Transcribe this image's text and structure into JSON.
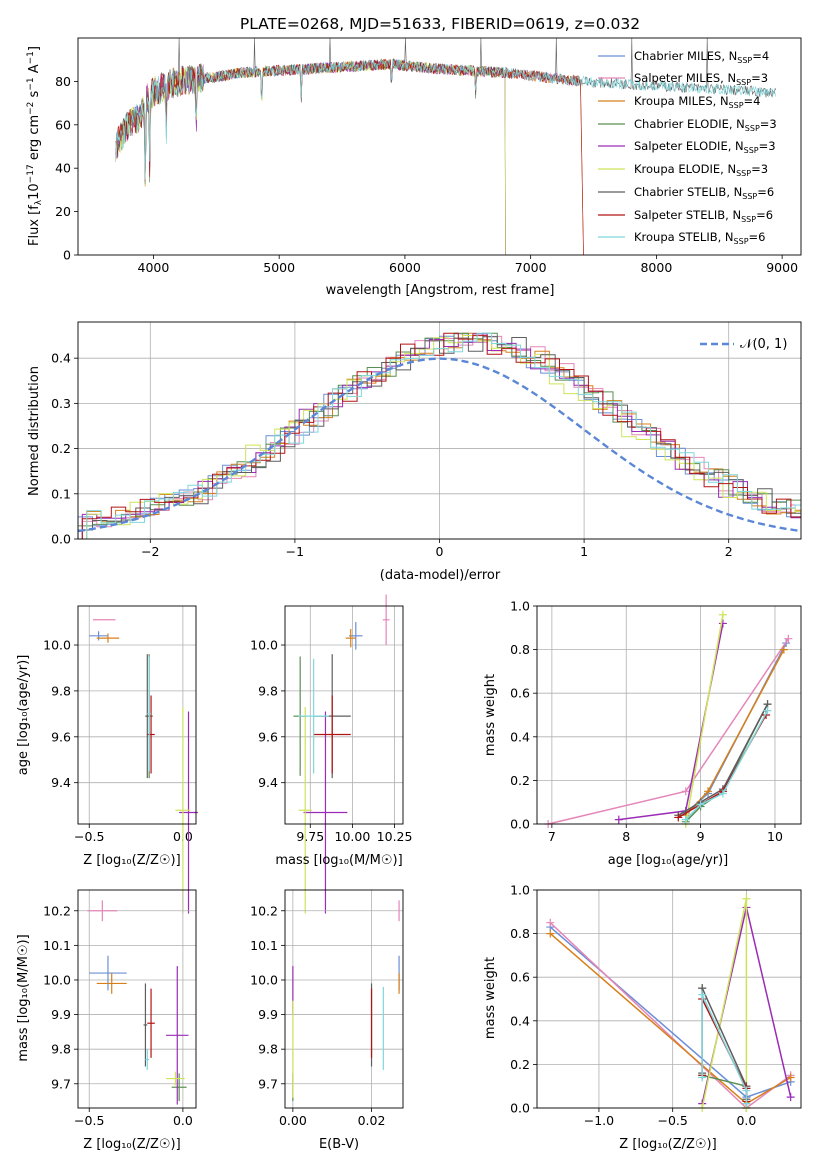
{
  "figure_title": "PLATE=0268, MJD=51633, FIBERID=0619, z=0.032",
  "colors": [
    "#6b8fd6",
    "#e586b8",
    "#d7801b",
    "#5a8f52",
    "#9b2cb7",
    "#cfe35a",
    "#5e5e5e",
    "#b21414",
    "#7fd8de"
  ],
  "panel_labels": {
    "spectrum": {
      "xlabel": "wavelength [Angstrom, rest frame]",
      "ylabel_main": "Flux [f",
      "ylabel_sub": "λ",
      "ylabel_mid": "10",
      "ylabel_sup": "−17",
      "ylabel_tail": " erg cm",
      "ylabel_sup2": "−2",
      "ylabel_tail2": " s",
      "ylabel_sup3": "−1",
      "ylabel_tail3": " A",
      "ylabel_sup4": "−1",
      "ylabel_end": "]"
    },
    "residual": {
      "xlabel": "(data-model)/error",
      "ylabel": "Normed distribution"
    },
    "z_age": {
      "xlabel": "Z [log₁₀(Z/Z☉)]",
      "ylabel": "age  [log₁₀(age/yr)]"
    },
    "mass_age": {
      "xlabel": "mass [log₁₀(M/M☉)]"
    },
    "age_weight": {
      "xlabel": "age  [log₁₀(age/yr)]",
      "ylabel": "mass weight"
    },
    "z_mass": {
      "xlabel": "Z [log₁₀(Z/Z☉)]",
      "ylabel": "mass [log₁₀(M/M☉)]"
    },
    "ebv_mass": {
      "xlabel": "E(B-V)"
    },
    "z_weight": {
      "xlabel": "Z [log₁₀(Z/Z☉)]",
      "ylabel": "mass weight"
    }
  },
  "legend": {
    "entries": [
      {
        "main": "Chabrier MILES, N",
        "sub": "SSP",
        "tail": "=4"
      },
      {
        "main": "Salpeter MILES, N",
        "sub": "SSP",
        "tail": "=3"
      },
      {
        "main": "Kroupa MILES, N",
        "sub": "SSP",
        "tail": "=4"
      },
      {
        "main": "Chabrier ELODIE, N",
        "sub": "SSP",
        "tail": "=3"
      },
      {
        "main": "Salpeter ELODIE, N",
        "sub": "SSP",
        "tail": "=3"
      },
      {
        "main": "Kroupa ELODIE, N",
        "sub": "SSP",
        "tail": "=3"
      },
      {
        "main": "Chabrier STELIB, N",
        "sub": "SSP",
        "tail": "=6"
      },
      {
        "main": "Salpeter STELIB, N",
        "sub": "SSP",
        "tail": "=6"
      },
      {
        "main": "Kroupa STELIB, N",
        "sub": "SSP",
        "tail": "=6"
      }
    ],
    "gaussian_label": "𝒩(0, 1)"
  },
  "chart_data": [
    {
      "id": "spectrum",
      "type": "line",
      "xlim": [
        3400,
        9150
      ],
      "ylim": [
        0,
        100
      ],
      "xticks": [
        4000,
        5000,
        6000,
        7000,
        8000,
        9000
      ],
      "yticks": [
        0,
        20,
        40,
        60,
        80
      ],
      "legend_position": "top-right",
      "continuum_x": [
        3700,
        3750,
        3800,
        3850,
        3900,
        3950,
        4000,
        4100,
        4200,
        4300,
        4500,
        4700,
        5000,
        5300,
        5600,
        5900,
        6200,
        6500,
        6800,
        7100,
        7400,
        7700,
        8000,
        8300,
        8600,
        8900
      ],
      "continuum_y": [
        50,
        55,
        60,
        62,
        64,
        72,
        75,
        78,
        80,
        81,
        82,
        84,
        85,
        86,
        87,
        88,
        86,
        85,
        84,
        82,
        80,
        79,
        78,
        77,
        76,
        75
      ],
      "series_ranges": [
        {
          "start": 3700,
          "end": 7400,
          "drop_at": null
        },
        {
          "start": 3700,
          "end": 7400,
          "drop_at": null
        },
        {
          "start": 3700,
          "end": 7400,
          "drop_at": 7420
        },
        {
          "start": 3700,
          "end": 6800,
          "drop_at": 6800
        },
        {
          "start": 3700,
          "end": 6800,
          "drop_at": 6800
        },
        {
          "start": 3700,
          "end": 6800,
          "drop_at": 6800
        },
        {
          "start": 3700,
          "end": 8950,
          "drop_at": null
        },
        {
          "start": 3700,
          "end": 7400,
          "drop_at": 7420
        },
        {
          "start": 3700,
          "end": 8950,
          "drop_at": null
        }
      ]
    },
    {
      "id": "residual",
      "type": "histogram",
      "xlim": [
        -2.5,
        2.5
      ],
      "ylim": [
        0,
        0.48
      ],
      "xticks": [
        -2,
        -1,
        0,
        1,
        2
      ],
      "yticks": [
        0.0,
        0.1,
        0.2,
        0.3,
        0.4
      ],
      "bin_edges_start": -2.5,
      "bin_width": 0.1,
      "gaussian": {
        "mean": 0,
        "sigma": 1,
        "label": "𝒩(0, 1)"
      },
      "grid": true,
      "legend_position": "top-right"
    },
    {
      "id": "z_age",
      "type": "scatter",
      "xlim": [
        -0.56,
        0.07
      ],
      "ylim": [
        9.22,
        10.17
      ],
      "xticks": [
        -0.5,
        0.0
      ],
      "yticks": [
        9.4,
        9.6,
        9.8,
        10.0
      ],
      "points": [
        {
          "x": -0.45,
          "y": 10.04,
          "xerr": 0.05,
          "yerr": 0.02
        },
        {
          "x": -0.42,
          "y": 10.11,
          "xerr": 0.06,
          "yerr": 0.0
        },
        {
          "x": -0.4,
          "y": 10.03,
          "xerr": 0.06,
          "yerr": 0.02
        },
        {
          "x": -0.18,
          "y": 9.69,
          "xerr": 0.02,
          "yerr": 0.27
        },
        {
          "x": 0.03,
          "y": 9.27,
          "xerr": 0.05,
          "yerr": 0.44
        },
        {
          "x": 0.0,
          "y": 9.28,
          "xerr": 0.04,
          "yerr": 0.45
        },
        {
          "x": -0.19,
          "y": 9.69,
          "xerr": 0.01,
          "yerr": 0.27
        },
        {
          "x": -0.17,
          "y": 9.61,
          "xerr": 0.02,
          "yerr": 0.17
        },
        {
          "x": -0.18,
          "y": 9.7,
          "xerr": 0.01,
          "yerr": 0.25
        }
      ]
    },
    {
      "id": "mass_age",
      "type": "scatter",
      "xlim": [
        9.6,
        10.3
      ],
      "ylim": [
        9.22,
        10.17
      ],
      "xticks": [
        9.75,
        10.0,
        10.25
      ],
      "yticks": [
        9.4,
        9.6,
        9.8,
        10.0
      ],
      "points": [
        {
          "x": 10.02,
          "y": 10.04,
          "xerr": 0.04,
          "yerr": 0.06
        },
        {
          "x": 10.2,
          "y": 10.11,
          "xerr": 0.02,
          "yerr": 0.11
        },
        {
          "x": 9.99,
          "y": 10.03,
          "xerr": 0.03,
          "yerr": 0.04
        },
        {
          "x": 9.69,
          "y": 9.69,
          "xerr": 0.04,
          "yerr": 0.26
        },
        {
          "x": 9.84,
          "y": 9.27,
          "xerr": 0.13,
          "yerr": 0.44
        },
        {
          "x": 9.72,
          "y": 9.28,
          "xerr": 0.04,
          "yerr": 0.45
        },
        {
          "x": 9.88,
          "y": 9.69,
          "xerr": 0.11,
          "yerr": 0.27
        },
        {
          "x": 9.88,
          "y": 9.61,
          "xerr": 0.11,
          "yerr": 0.17
        },
        {
          "x": 9.77,
          "y": 9.69,
          "xerr": 0.09,
          "yerr": 0.25
        }
      ]
    },
    {
      "id": "age_weight",
      "type": "line",
      "xlim": [
        6.8,
        10.35
      ],
      "ylim": [
        0,
        1.0
      ],
      "xticks": [
        7,
        8,
        9,
        10
      ],
      "yticks": [
        0.0,
        0.2,
        0.4,
        0.6,
        0.8,
        1.0
      ],
      "series": [
        {
          "x": [
            8.8,
            9.1,
            10.15
          ],
          "y": [
            0.05,
            0.14,
            0.83
          ]
        },
        {
          "x": [
            6.95,
            8.8,
            10.18
          ],
          "y": [
            0.0,
            0.15,
            0.85
          ]
        },
        {
          "x": [
            8.8,
            9.1,
            10.12
          ],
          "y": [
            0.04,
            0.15,
            0.8
          ]
        },
        {
          "x": [
            8.8,
            9.0,
            9.3,
            9.9
          ],
          "y": [
            0.01,
            0.08,
            0.15,
            0.55
          ]
        },
        {
          "x": [
            7.9,
            8.8,
            9.3
          ],
          "y": [
            0.02,
            0.06,
            0.92
          ]
        },
        {
          "x": [
            8.8,
            9.3
          ],
          "y": [
            0.0,
            0.96
          ]
        },
        {
          "x": [
            8.7,
            9.0,
            9.3,
            9.9
          ],
          "y": [
            0.04,
            0.1,
            0.16,
            0.55
          ]
        },
        {
          "x": [
            8.7,
            9.0,
            9.3,
            9.88
          ],
          "y": [
            0.03,
            0.09,
            0.15,
            0.5
          ]
        },
        {
          "x": [
            8.8,
            9.0,
            9.3,
            9.9
          ],
          "y": [
            0.02,
            0.09,
            0.14,
            0.52
          ]
        }
      ]
    },
    {
      "id": "z_mass",
      "type": "scatter",
      "xlim": [
        -0.56,
        0.07
      ],
      "ylim": [
        9.63,
        10.26
      ],
      "xticks": [
        -0.5,
        0.0
      ],
      "yticks": [
        9.7,
        9.8,
        9.9,
        10.0,
        10.1,
        10.2
      ],
      "points": [
        {
          "x": -0.4,
          "y": 10.02,
          "xerr": 0.1,
          "yerr": 0.05
        },
        {
          "x": -0.43,
          "y": 10.2,
          "xerr": 0.08,
          "yerr": 0.03
        },
        {
          "x": -0.38,
          "y": 9.99,
          "xerr": 0.08,
          "yerr": 0.03
        },
        {
          "x": -0.02,
          "y": 9.69,
          "xerr": 0.04,
          "yerr": 0.04
        },
        {
          "x": -0.03,
          "y": 9.84,
          "xerr": 0.06,
          "yerr": 0.2
        },
        {
          "x": -0.04,
          "y": 9.715,
          "xerr": 0.05,
          "yerr": 0.02
        },
        {
          "x": -0.2,
          "y": 9.87,
          "xerr": 0.01,
          "yerr": 0.12
        },
        {
          "x": -0.17,
          "y": 9.875,
          "xerr": 0.02,
          "yerr": 0.1
        },
        {
          "x": -0.19,
          "y": 9.77,
          "xerr": 0.01,
          "yerr": 0.03
        }
      ]
    },
    {
      "id": "ebv_mass",
      "type": "scatter",
      "xlim": [
        -0.002,
        0.028
      ],
      "ylim": [
        9.63,
        10.26
      ],
      "xticks": [
        0.0,
        0.02
      ],
      "yticks": [
        9.7,
        9.8,
        9.9,
        10.0,
        10.1,
        10.2
      ],
      "points": [
        {
          "x": 0.027,
          "y": 10.02,
          "yerr": 0.05
        },
        {
          "x": 0.027,
          "y": 10.2,
          "yerr": 0.03
        },
        {
          "x": 0.027,
          "y": 9.99,
          "yerr": 0.03
        },
        {
          "x": 0.0,
          "y": 9.69,
          "yerr": 0.04
        },
        {
          "x": 0.0,
          "y": 9.97,
          "yerr": 0.07
        },
        {
          "x": 0.0,
          "y": 9.8,
          "yerr": 0.14
        },
        {
          "x": 0.02,
          "y": 9.87,
          "yerr": 0.12
        },
        {
          "x": 0.02,
          "y": 9.875,
          "yerr": 0.1
        },
        {
          "x": 0.023,
          "y": 9.86,
          "yerr": 0.12
        }
      ]
    },
    {
      "id": "z_weight",
      "type": "line",
      "xlim": [
        -1.42,
        0.37
      ],
      "ylim": [
        0,
        1.0
      ],
      "xticks": [
        -1.0,
        -0.5,
        0.0
      ],
      "yticks": [
        0.0,
        0.2,
        0.4,
        0.6,
        0.8,
        1.0
      ],
      "series": [
        {
          "x": [
            -1.33,
            0.0,
            0.3
          ],
          "y": [
            0.83,
            0.05,
            0.12
          ]
        },
        {
          "x": [
            -1.33,
            0.0,
            0.3
          ],
          "y": [
            0.85,
            0.0,
            0.15
          ]
        },
        {
          "x": [
            -1.33,
            0.0,
            0.3
          ],
          "y": [
            0.8,
            0.02,
            0.14
          ]
        },
        {
          "x": [
            -0.3,
            -0.3,
            0.0,
            0.0
          ],
          "y": [
            0.55,
            0.15,
            0.1,
            0.0
          ]
        },
        {
          "x": [
            -0.3,
            0.0,
            0.3
          ],
          "y": [
            0.02,
            0.92,
            0.05
          ]
        },
        {
          "x": [
            -0.3,
            0.0,
            0.0
          ],
          "y": [
            0.0,
            0.96,
            0.0
          ]
        },
        {
          "x": [
            -0.3,
            -0.3,
            0.0,
            0.0
          ],
          "y": [
            0.16,
            0.55,
            0.1,
            0.04
          ]
        },
        {
          "x": [
            -0.3,
            -0.3,
            0.0,
            0.0
          ],
          "y": [
            0.15,
            0.5,
            0.09,
            0.03
          ]
        },
        {
          "x": [
            -0.3,
            -0.3,
            0.0,
            0.0
          ],
          "y": [
            0.14,
            0.52,
            0.08,
            0.02
          ]
        }
      ]
    }
  ]
}
